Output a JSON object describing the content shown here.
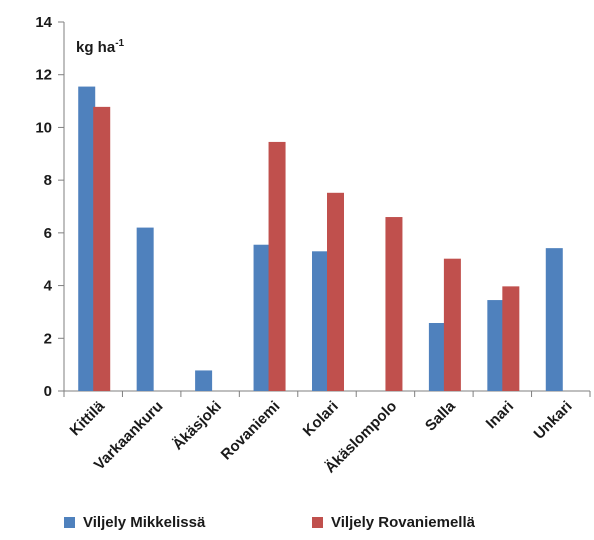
{
  "chart_data": {
    "type": "bar",
    "unit_label": {
      "main": "kg ha",
      "sup": "-1"
    },
    "categories": [
      "Kittilä",
      "Varkaankuru",
      "Äkäsjoki",
      "Rovaniemi",
      "Kolari",
      "Äkäslompolo",
      "Salla",
      "Inari",
      "Unkari"
    ],
    "series": [
      {
        "name": "Viljely Mikkelissä",
        "color": "#4f81bd",
        "values": [
          11.55,
          6.2,
          0.78,
          5.55,
          5.3,
          null,
          2.58,
          3.45,
          5.42
        ]
      },
      {
        "name": "Viljely Rovaniemellä",
        "color": "#c0504d",
        "values": [
          10.78,
          null,
          null,
          9.45,
          7.52,
          6.6,
          5.02,
          3.97,
          null
        ]
      }
    ],
    "ylim": [
      0,
      14
    ],
    "yticks": [
      "0",
      "2",
      "4",
      "6",
      "8",
      "10",
      "12",
      "14"
    ],
    "grid": false,
    "legend_position": "bottom"
  }
}
